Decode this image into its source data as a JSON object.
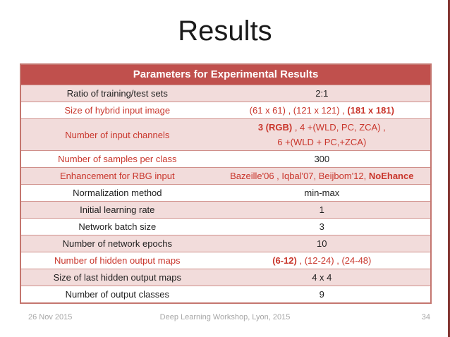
{
  "slide": {
    "title": "Results",
    "footer": {
      "date": "26 Nov 2015",
      "center": "Deep Learning Workshop, Lyon, 2015",
      "page": "34"
    }
  },
  "table": {
    "header": "Parameters for Experimental Results",
    "rows": [
      {
        "label": "Ratio of training/test sets",
        "label_color": "black",
        "value_color": "black",
        "value_lines": [
          [
            {
              "text": "2:1"
            }
          ]
        ]
      },
      {
        "label": "Size of hybrid input image",
        "label_color": "red",
        "value_color": "red",
        "value_lines": [
          [
            {
              "text": "(61 x 61) , (121 x 121) , "
            },
            {
              "text": "(181 x 181)",
              "bold": true
            }
          ]
        ]
      },
      {
        "label": "Number of input channels",
        "label_color": "red",
        "value_color": "red",
        "value_lines": [
          [
            {
              "text": "3 (RGB)",
              "bold": true
            },
            {
              "text": " , 4 +(WLD, PC, ZCA) ,"
            }
          ],
          [
            {
              "text": "6 +(WLD + PC,+ZCA)"
            }
          ]
        ]
      },
      {
        "label": "Number of samples per class",
        "label_color": "red",
        "value_color": "black",
        "value_lines": [
          [
            {
              "text": "300"
            }
          ]
        ]
      },
      {
        "label": "Enhancement for RBG input",
        "label_color": "red",
        "value_color": "red",
        "value_lines": [
          [
            {
              "text": "Bazeille'06 , Iqbal'07, Beijbom'12, "
            },
            {
              "text": "NoEhance",
              "bold": true
            }
          ]
        ]
      },
      {
        "label": "Normalization method",
        "label_color": "black",
        "value_color": "black",
        "value_lines": [
          [
            {
              "text": "min-max"
            }
          ]
        ]
      },
      {
        "label": "Initial learning rate",
        "label_color": "black",
        "value_color": "black",
        "value_lines": [
          [
            {
              "text": "1"
            }
          ]
        ]
      },
      {
        "label": "Network batch size",
        "label_color": "black",
        "value_color": "black",
        "value_lines": [
          [
            {
              "text": "3"
            }
          ]
        ]
      },
      {
        "label": "Number of network epochs",
        "label_color": "black",
        "value_color": "black",
        "value_lines": [
          [
            {
              "text": "10"
            }
          ]
        ]
      },
      {
        "label": "Number of hidden output maps",
        "label_color": "red",
        "value_color": "red",
        "value_lines": [
          [
            {
              "text": "(6-12)",
              "bold": true
            },
            {
              "text": " , (12-24) , (24-48)"
            }
          ]
        ]
      },
      {
        "label": "Size of last hidden output maps",
        "label_color": "black",
        "value_color": "black",
        "value_lines": [
          [
            {
              "text": "4 x 4"
            }
          ]
        ]
      },
      {
        "label": "Number of output classes",
        "label_color": "black",
        "value_color": "black",
        "value_lines": [
          [
            {
              "text": "9"
            }
          ]
        ]
      }
    ]
  },
  "colors": {
    "header_bg": "#C0504D",
    "header_text": "#FFFFFF",
    "row_pink": "#F2DCDB",
    "row_white": "#FFFFFF",
    "red_text": "#C9362C",
    "black_text": "#1F1F1F",
    "title_text": "#1A1A1A",
    "footer_text": "#A6A6A6",
    "edge_bar": "#823531"
  }
}
